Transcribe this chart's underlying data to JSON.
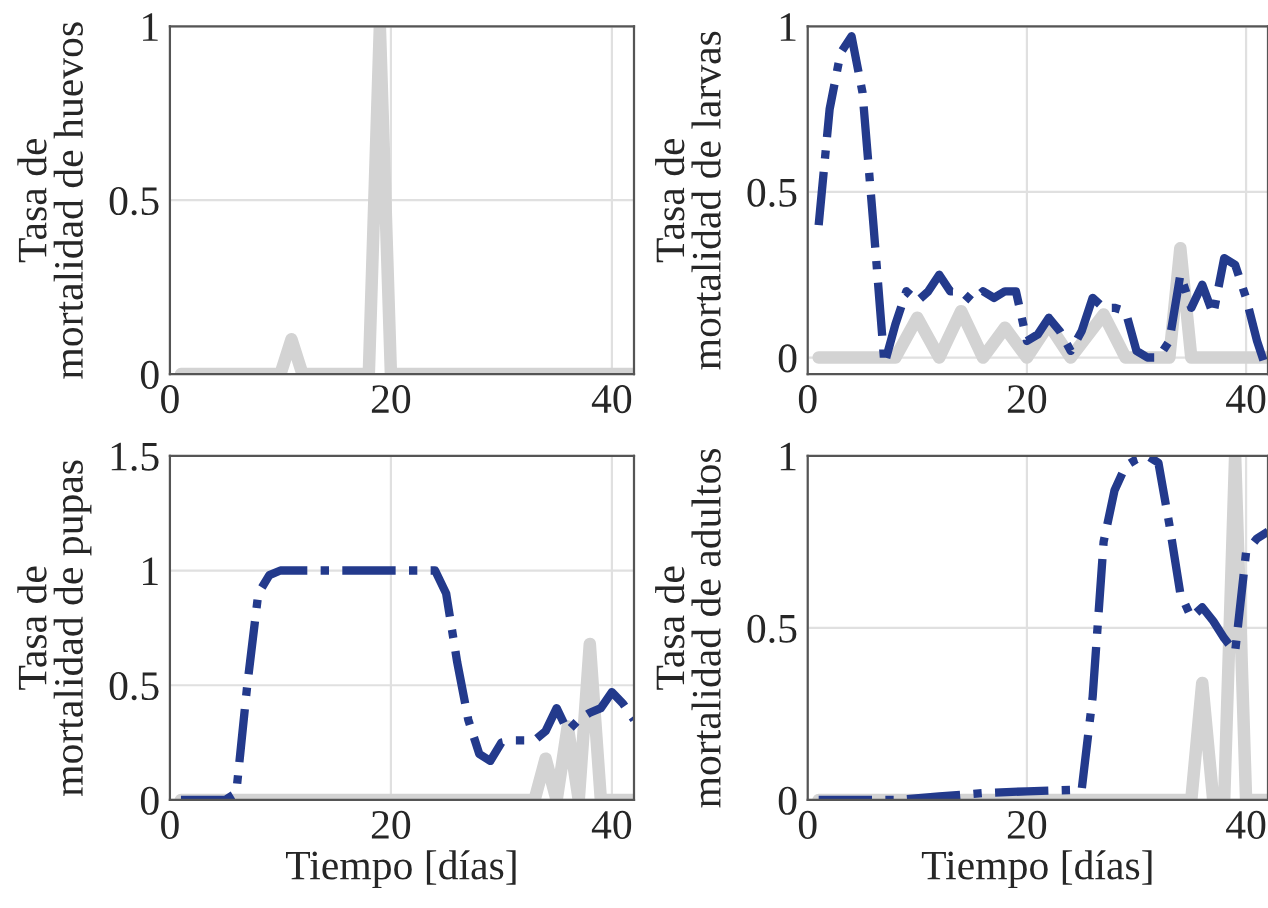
{
  "chart_data": [
    {
      "type": "line",
      "ylabel": "Tasa de\nmortalidad de huevos",
      "xlim": [
        0,
        42
      ],
      "ylim": [
        0,
        1
      ],
      "xticks": [
        0,
        20,
        40
      ],
      "yticks": [
        0,
        0.5,
        1
      ],
      "grid": true,
      "series": [
        {
          "color": "#d3d3d3",
          "line_style": "solid",
          "x": [
            1,
            10,
            11,
            12,
            18,
            19,
            20,
            42
          ],
          "values": [
            0,
            0,
            0.1,
            0,
            0,
            1,
            0,
            0
          ]
        }
      ]
    },
    {
      "type": "line",
      "ylabel": "Tasa de\nmortalidad de larvas",
      "xlim": [
        0,
        42
      ],
      "ylim": [
        -0.05,
        1
      ],
      "xticks": [
        0,
        20,
        40
      ],
      "yticks": [
        0,
        0.5,
        1
      ],
      "grid": true,
      "series": [
        {
          "color": "#d3d3d3",
          "line_style": "solid",
          "x": [
            1,
            8,
            10,
            12,
            14,
            16,
            18,
            20,
            22,
            24,
            27,
            29,
            33,
            34,
            35,
            42
          ],
          "values": [
            0,
            0,
            0.12,
            0,
            0.14,
            0,
            0.09,
            0,
            0.1,
            0,
            0.13,
            0,
            0,
            0.33,
            0,
            0
          ]
        },
        {
          "color": "#233a8c",
          "line_style": "dashdot",
          "x": [
            1,
            2,
            3,
            4,
            5,
            6,
            7,
            8,
            9,
            10,
            11,
            12,
            13,
            14,
            15,
            16,
            17,
            18,
            19,
            20,
            21,
            22,
            23,
            24,
            25,
            26,
            27,
            28,
            29,
            30,
            31,
            32,
            33,
            34,
            35,
            36,
            37,
            38,
            39,
            40,
            41,
            42
          ],
          "values": [
            0.4,
            0.75,
            0.92,
            0.97,
            0.8,
            0.4,
            -0.02,
            0.1,
            0.2,
            0.17,
            0.2,
            0.25,
            0.2,
            0.2,
            0.17,
            0.2,
            0.18,
            0.2,
            0.2,
            0.05,
            0.07,
            0.12,
            0.08,
            0.02,
            0.08,
            0.18,
            0.15,
            0.15,
            0.14,
            0.02,
            0,
            0,
            0.05,
            0.25,
            0.15,
            0.22,
            0.13,
            0.3,
            0.28,
            0.18,
            0.05,
            -0.05
          ]
        }
      ]
    },
    {
      "type": "line",
      "ylabel": "Tasa de\nmortalidad de pupas",
      "xlabel": "Tiempo [días]",
      "xlim": [
        0,
        42
      ],
      "ylim": [
        0,
        1.5
      ],
      "xticks": [
        0,
        20,
        40
      ],
      "yticks": [
        0,
        0.5,
        1,
        1.5
      ],
      "grid": true,
      "series": [
        {
          "color": "#d3d3d3",
          "line_style": "solid",
          "x": [
            1,
            33,
            34,
            35,
            36,
            37,
            38,
            39,
            42
          ],
          "values": [
            0,
            0,
            0.18,
            0,
            0.32,
            0,
            0.68,
            0,
            0
          ]
        },
        {
          "color": "#233a8c",
          "line_style": "dashdot",
          "x": [
            1,
            2,
            3,
            4,
            5,
            6,
            7,
            8,
            9,
            10,
            12,
            14,
            16,
            18,
            20,
            22,
            24,
            25,
            26,
            27,
            28,
            29,
            30,
            31,
            32,
            33,
            34,
            35,
            36,
            37,
            38,
            39,
            40,
            41,
            42
          ],
          "values": [
            0,
            0,
            0,
            0,
            0,
            0.03,
            0.5,
            0.9,
            0.98,
            1,
            1,
            1,
            1,
            1,
            1,
            1,
            1,
            0.9,
            0.6,
            0.35,
            0.2,
            0.17,
            0.25,
            0.26,
            0.26,
            0.26,
            0.3,
            0.4,
            0.3,
            0.35,
            0.38,
            0.4,
            0.47,
            0.42,
            0.35
          ]
        }
      ]
    },
    {
      "type": "line",
      "ylabel": "Tasa de\nmortalidad de adultos",
      "xlabel": "Tiempo [días]",
      "xlim": [
        0,
        42
      ],
      "ylim": [
        0,
        1
      ],
      "xticks": [
        0,
        20,
        40
      ],
      "yticks": [
        0,
        0.5,
        1
      ],
      "grid": true,
      "series": [
        {
          "color": "#d3d3d3",
          "line_style": "solid",
          "x": [
            1,
            35,
            36,
            37,
            38,
            39,
            40,
            42
          ],
          "values": [
            0,
            0,
            0.34,
            0,
            0,
            1,
            0,
            0
          ]
        },
        {
          "color": "#233a8c",
          "line_style": "dashdot",
          "x": [
            1,
            8,
            12,
            16,
            20,
            25,
            26,
            27,
            28,
            29,
            30,
            31,
            32,
            33,
            34,
            35,
            36,
            37,
            38,
            39,
            40,
            41,
            42
          ],
          "values": [
            0,
            0,
            0.01,
            0.02,
            0.025,
            0.03,
            0.3,
            0.75,
            0.9,
            0.97,
            0.99,
            1,
            0.98,
            0.8,
            0.6,
            0.53,
            0.56,
            0.52,
            0.47,
            0.43,
            0.72,
            0.76,
            0.78
          ]
        }
      ]
    }
  ]
}
